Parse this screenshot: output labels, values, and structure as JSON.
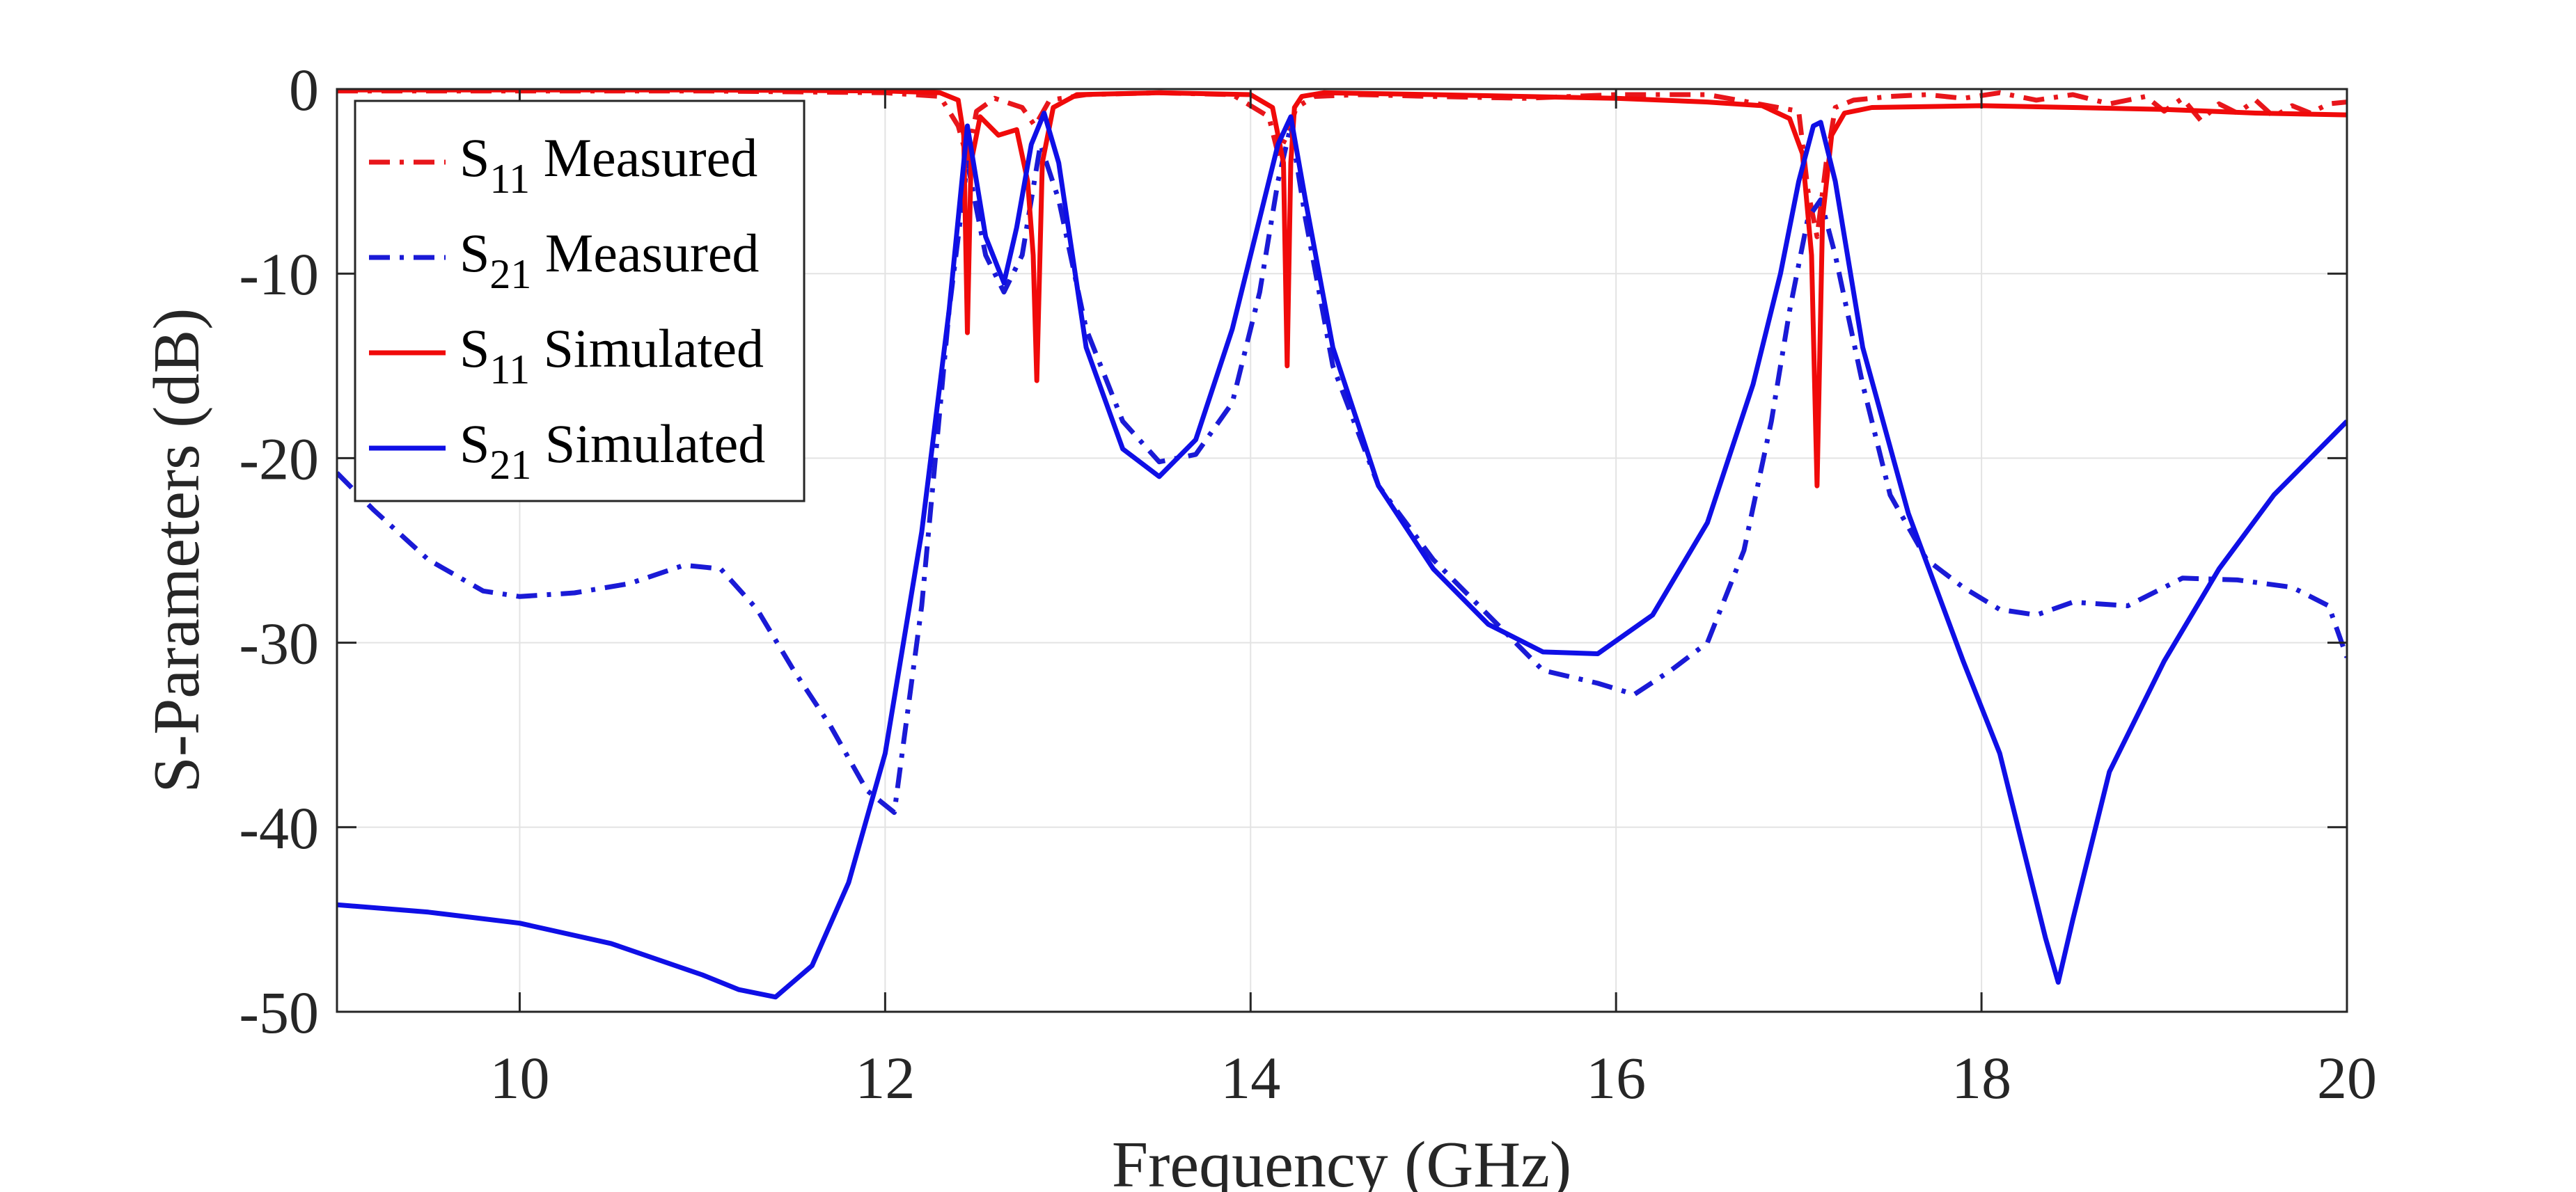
{
  "chart_data": {
    "type": "line",
    "title": "",
    "xlabel": "Frequency (GHz)",
    "ylabel": "S-Parameters (dB)",
    "xlim": [
      9,
      20
    ],
    "ylim": [
      -50,
      0
    ],
    "xticks": [
      10,
      12,
      14,
      16,
      18,
      20
    ],
    "xtick_labels": [
      "10",
      "12",
      "14",
      "16",
      "18",
      "20"
    ],
    "yticks": [
      0,
      -10,
      -20,
      -30,
      -40,
      -50
    ],
    "ytick_labels": [
      "0",
      "-10",
      "-20",
      "-30",
      "-40",
      "-50"
    ],
    "grid": true,
    "legend_position": "top-left",
    "series": [
      {
        "name": "S11 Measured",
        "label_main": "S",
        "label_sub": "11",
        "label_rest": " Measured",
        "color": "#e8161b",
        "style": "dashdot",
        "x": [
          9,
          10,
          11,
          12,
          12.3,
          12.4,
          12.45,
          12.5,
          12.6,
          12.75,
          12.82,
          12.9,
          13.1,
          13.5,
          13.9,
          14.1,
          14.15,
          14.2,
          14.25,
          14.35,
          14.6,
          15,
          15.5,
          16,
          16.5,
          17.0,
          17.05,
          17.1,
          17.15,
          17.2,
          17.3,
          17.5,
          17.7,
          17.9,
          18.1,
          18.3,
          18.5,
          18.7,
          18.9,
          19.0,
          19.1,
          19.2,
          19.3,
          19.4,
          19.5,
          19.6,
          19.7,
          19.8,
          19.9,
          20
        ],
        "y": [
          -0.1,
          -0.1,
          -0.1,
          -0.2,
          -0.4,
          -2.0,
          -3.8,
          -1.2,
          -0.5,
          -1.0,
          -2.0,
          -0.6,
          -0.3,
          -0.2,
          -0.3,
          -1.5,
          -3.5,
          -2.5,
          -1.0,
          -0.4,
          -0.3,
          -0.4,
          -0.5,
          -0.3,
          -0.3,
          -1.2,
          -5.5,
          -8.0,
          -4.0,
          -1.0,
          -0.6,
          -0.4,
          -0.3,
          -0.5,
          -0.2,
          -0.6,
          -0.3,
          -0.8,
          -0.4,
          -1.2,
          -0.5,
          -1.7,
          -0.8,
          -1.3,
          -0.6,
          -1.5,
          -0.9,
          -1.3,
          -0.8,
          -0.7
        ]
      },
      {
        "name": "S21 Measured",
        "label_main": "S",
        "label_sub": "21",
        "label_rest": " Measured",
        "color": "#1a1ad6",
        "style": "dashdot",
        "x": [
          9,
          9.2,
          9.5,
          9.8,
          10,
          10.3,
          10.6,
          10.9,
          11.1,
          11.3,
          11.5,
          11.7,
          11.9,
          12.05,
          12.2,
          12.35,
          12.45,
          12.55,
          12.65,
          12.75,
          12.85,
          12.95,
          13.1,
          13.3,
          13.5,
          13.7,
          13.9,
          14.05,
          14.15,
          14.22,
          14.3,
          14.45,
          14.7,
          15,
          15.3,
          15.6,
          15.9,
          16.1,
          16.3,
          16.5,
          16.7,
          16.85,
          16.95,
          17.05,
          17.12,
          17.2,
          17.35,
          17.5,
          17.7,
          17.9,
          18.1,
          18.3,
          18.5,
          18.8,
          19.1,
          19.4,
          19.7,
          19.9,
          20
        ],
        "y": [
          -20.8,
          -22.8,
          -25.5,
          -27.2,
          -27.5,
          -27.3,
          -26.8,
          -25.8,
          -26.0,
          -28.2,
          -31.5,
          -34.5,
          -38.0,
          -39.2,
          -28.0,
          -12.0,
          -4.0,
          -9.0,
          -11.0,
          -9.0,
          -3.0,
          -6.0,
          -13.0,
          -18.0,
          -20.2,
          -19.8,
          -17.0,
          -11.0,
          -5.0,
          -2.0,
          -7.0,
          -15.0,
          -21.5,
          -25.5,
          -28.5,
          -31.5,
          -32.2,
          -32.8,
          -31.5,
          -30.0,
          -25.0,
          -18.0,
          -12.0,
          -7.0,
          -6.0,
          -9.0,
          -16.0,
          -22.0,
          -25.5,
          -27.0,
          -28.2,
          -28.5,
          -27.8,
          -28.0,
          -26.5,
          -26.6,
          -27.0,
          -28.0,
          -30.8
        ]
      },
      {
        "name": "S11 Simulated",
        "label_main": "S",
        "label_sub": "11",
        "label_rest": " Simulated",
        "color": "#f00a0a",
        "style": "solid",
        "x": [
          9,
          10,
          11,
          12,
          12.3,
          12.4,
          12.43,
          12.45,
          12.47,
          12.52,
          12.62,
          12.72,
          12.78,
          12.81,
          12.83,
          12.86,
          12.92,
          13.05,
          13.5,
          14.0,
          14.12,
          14.18,
          14.2,
          14.22,
          14.24,
          14.28,
          14.4,
          15.0,
          15.5,
          16.0,
          16.5,
          16.8,
          16.95,
          17.02,
          17.07,
          17.1,
          17.13,
          17.18,
          17.25,
          17.4,
          18,
          18.5,
          19,
          19.5,
          20
        ],
        "y": [
          -0.05,
          -0.05,
          -0.05,
          -0.1,
          -0.2,
          -0.6,
          -2.5,
          -13.2,
          -4.0,
          -1.5,
          -2.5,
          -2.2,
          -5.0,
          -9.0,
          -15.8,
          -4.0,
          -1.0,
          -0.3,
          -0.2,
          -0.3,
          -1.0,
          -4.0,
          -15.0,
          -4.0,
          -1.0,
          -0.4,
          -0.2,
          -0.3,
          -0.4,
          -0.5,
          -0.7,
          -0.9,
          -1.6,
          -3.5,
          -9.0,
          -21.5,
          -7.0,
          -2.5,
          -1.3,
          -1.0,
          -0.9,
          -1.0,
          -1.1,
          -1.3,
          -1.4
        ]
      },
      {
        "name": "S21 Simulated",
        "label_main": "S",
        "label_sub": "21",
        "label_rest": " Simulated",
        "color": "#0f0fe6",
        "style": "solid",
        "x": [
          9,
          9.5,
          10,
          10.5,
          11,
          11.2,
          11.4,
          11.6,
          11.8,
          12.0,
          12.2,
          12.35,
          12.45,
          12.55,
          12.65,
          12.72,
          12.8,
          12.87,
          12.95,
          13.1,
          13.3,
          13.5,
          13.7,
          13.9,
          14.05,
          14.15,
          14.22,
          14.3,
          14.45,
          14.7,
          15,
          15.3,
          15.6,
          15.9,
          16.2,
          16.5,
          16.75,
          16.9,
          17.0,
          17.08,
          17.12,
          17.2,
          17.35,
          17.6,
          17.9,
          18.1,
          18.25,
          18.35,
          18.42,
          18.5,
          18.7,
          19.0,
          19.3,
          19.6,
          20
        ],
        "y": [
          -44.2,
          -44.6,
          -45.2,
          -46.3,
          -48.0,
          -48.8,
          -49.2,
          -47.5,
          -43.0,
          -36.0,
          -24.0,
          -12.0,
          -2.0,
          -8.0,
          -10.5,
          -7.5,
          -3.0,
          -1.3,
          -4.0,
          -14.0,
          -19.5,
          -21.0,
          -19.0,
          -13.0,
          -7.0,
          -3.0,
          -1.5,
          -6.0,
          -14.0,
          -21.5,
          -26.0,
          -29.0,
          -30.5,
          -30.6,
          -28.5,
          -23.5,
          -16.0,
          -10.0,
          -5.0,
          -2.0,
          -1.8,
          -5.0,
          -14.0,
          -23.0,
          -31.0,
          -36.0,
          -42.0,
          -46.0,
          -48.4,
          -45.0,
          -37.0,
          -31.0,
          -26.0,
          -22.0,
          -18.0
        ]
      }
    ]
  }
}
